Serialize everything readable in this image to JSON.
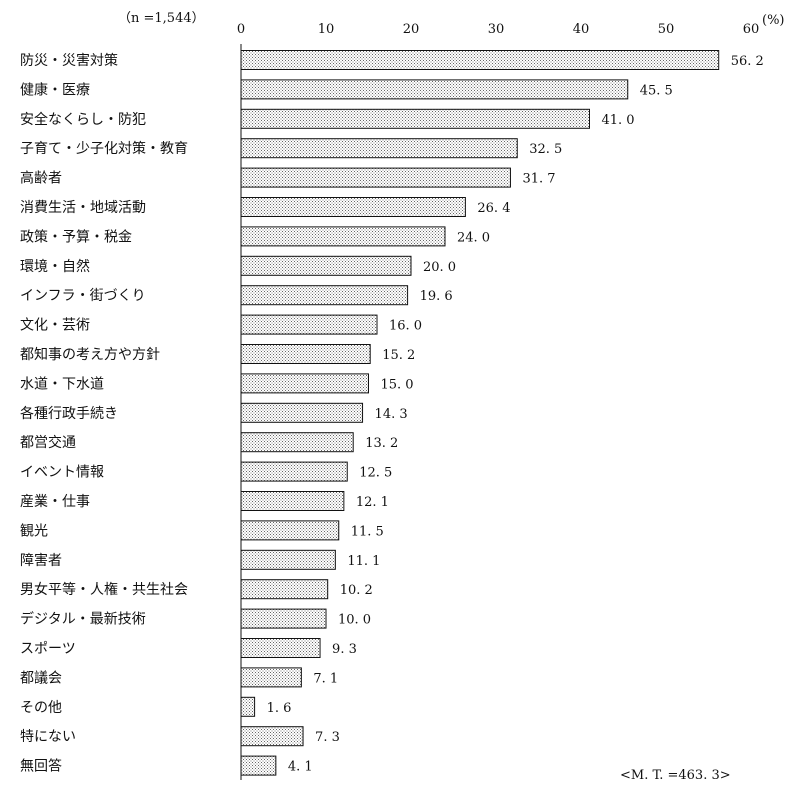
{
  "chart_data": {
    "type": "bar",
    "orientation": "horizontal",
    "sample_note": "（n =1,544）",
    "unit": "(%)",
    "mt_note": "<M. T. =463. 3>",
    "xlim": [
      0,
      60
    ],
    "ticks": [
      "0",
      "10",
      "20",
      "30",
      "40",
      "50",
      "60"
    ],
    "bar_pattern": "dotted-gray",
    "categories": [
      "防災・災害対策",
      "健康・医療",
      "安全なくらし・防犯",
      "子育て・少子化対策・教育",
      "高齢者",
      "消費生活・地域活動",
      "政策・予算・税金",
      "環境・自然",
      "インフラ・街づくり",
      "文化・芸術",
      "都知事の考え方や方針",
      "水道・下水道",
      "各種行政手続き",
      "都営交通",
      "イベント情報",
      "産業・仕事",
      "観光",
      "障害者",
      "男女平等・人権・共生社会",
      "デジタル・最新技術",
      "スポーツ",
      "都議会",
      "その他",
      "特にない",
      "無回答"
    ],
    "values": [
      56.2,
      45.5,
      41.0,
      32.5,
      31.7,
      26.4,
      24.0,
      20.0,
      19.6,
      16.0,
      15.2,
      15.0,
      14.3,
      13.2,
      12.5,
      12.1,
      11.5,
      11.1,
      10.2,
      10.0,
      9.3,
      7.1,
      1.6,
      7.3,
      4.1
    ],
    "value_labels": [
      "56. 2",
      "45. 5",
      "41. 0",
      "32. 5",
      "31. 7",
      "26. 4",
      "24. 0",
      "20. 0",
      "19. 6",
      "16. 0",
      "15. 2",
      "15. 0",
      "14. 3",
      "13. 2",
      "12. 5",
      "12. 1",
      "11. 5",
      "11. 1",
      "10. 2",
      "10. 0",
      "9. 3",
      "7. 1",
      "1. 6",
      "7. 3",
      "4. 1"
    ]
  }
}
